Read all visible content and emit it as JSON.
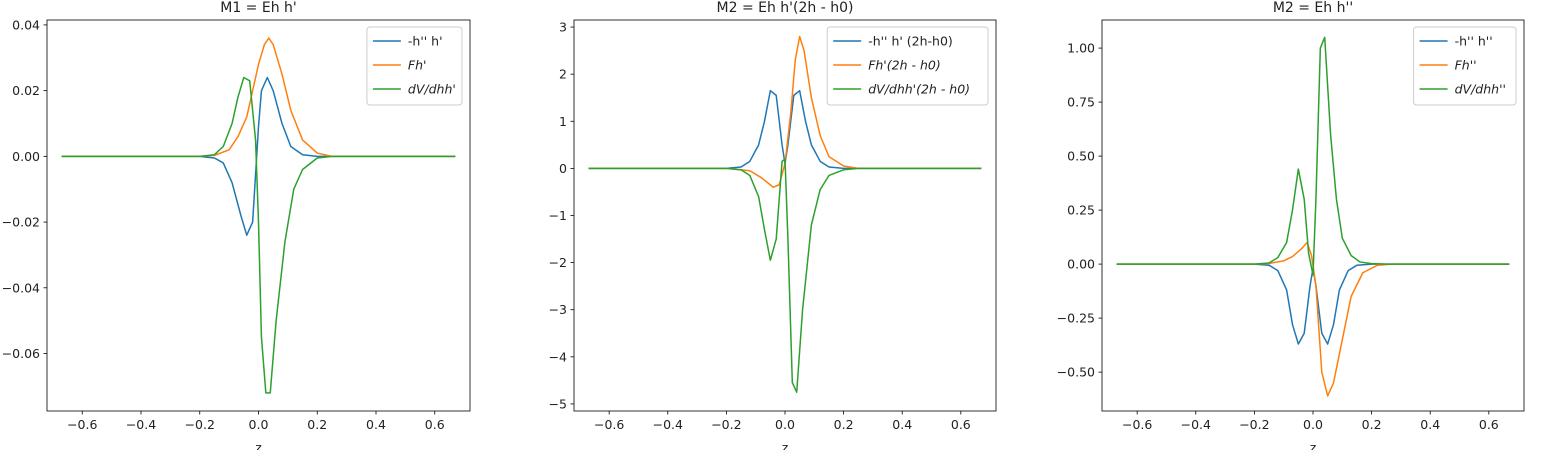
{
  "chart_data": [
    {
      "type": "line",
      "title": "M1 = Eh h'",
      "xlabel": "z",
      "ylabel": "",
      "xlim": [
        -0.72,
        0.72
      ],
      "ylim": [
        -0.0775,
        0.0415
      ],
      "xticks": [
        -0.6,
        -0.4,
        -0.2,
        0.0,
        0.2,
        0.4,
        0.6
      ],
      "xtick_labels": [
        "−0.6",
        "−0.4",
        "−0.2",
        "0.0",
        "0.2",
        "0.4",
        "0.6"
      ],
      "yticks": [
        0.04,
        0.02,
        0.0,
        -0.02,
        -0.04,
        -0.06
      ],
      "ytick_labels": [
        "0.04",
        "0.02",
        "0.00",
        "−0.02",
        "−0.04",
        "−0.06"
      ],
      "legend_position": "top-right",
      "series": [
        {
          "name": "-h'' h'",
          "color": "#1f77b4",
          "x": [
            -0.67,
            -0.2,
            -0.15,
            -0.12,
            -0.09,
            -0.06,
            -0.04,
            -0.02,
            0.0,
            0.01,
            0.03,
            0.05,
            0.08,
            0.11,
            0.15,
            0.2,
            0.67
          ],
          "y": [
            0,
            0,
            -0.0005,
            -0.002,
            -0.008,
            -0.018,
            -0.024,
            -0.02,
            0.009,
            0.02,
            0.024,
            0.02,
            0.01,
            0.003,
            0.0005,
            0,
            0
          ]
        },
        {
          "name": "Fh'",
          "color": "#ff7f0e",
          "x": [
            -0.67,
            -0.2,
            -0.15,
            -0.1,
            -0.07,
            -0.04,
            -0.02,
            0.0,
            0.02,
            0.035,
            0.05,
            0.08,
            0.11,
            0.15,
            0.2,
            0.25,
            0.67
          ],
          "y": [
            0,
            0,
            0.0003,
            0.002,
            0.006,
            0.012,
            0.02,
            0.028,
            0.034,
            0.036,
            0.034,
            0.025,
            0.014,
            0.005,
            0.001,
            0,
            0
          ]
        },
        {
          "name": "dV/dhh'",
          "color": "#2ca02c",
          "x": [
            -0.67,
            -0.2,
            -0.15,
            -0.12,
            -0.09,
            -0.07,
            -0.05,
            -0.03,
            -0.01,
            0.0,
            0.01,
            0.025,
            0.04,
            0.06,
            0.09,
            0.12,
            0.15,
            0.2,
            0.25,
            0.67
          ],
          "y": [
            0,
            0,
            0.0005,
            0.003,
            0.01,
            0.018,
            0.024,
            0.023,
            0.005,
            -0.02,
            -0.055,
            -0.072,
            -0.072,
            -0.05,
            -0.026,
            -0.01,
            -0.004,
            -0.0005,
            0,
            0
          ]
        }
      ]
    },
    {
      "type": "line",
      "title": "M2 = Eh h'(2h - h0)",
      "xlabel": "z",
      "ylabel": "",
      "xlim": [
        -0.72,
        0.72
      ],
      "ylim": [
        -5.15,
        3.15
      ],
      "xticks": [
        -0.6,
        -0.4,
        -0.2,
        0.0,
        0.2,
        0.4,
        0.6
      ],
      "xtick_labels": [
        "−0.6",
        "−0.4",
        "−0.2",
        "0.0",
        "0.2",
        "0.4",
        "0.6"
      ],
      "yticks": [
        3,
        2,
        1,
        0,
        -1,
        -2,
        -3,
        -4,
        -5
      ],
      "ytick_labels": [
        "3",
        "2",
        "1",
        "0",
        "−1",
        "−2",
        "−3",
        "−4",
        "−5"
      ],
      "legend_position": "top-right",
      "series": [
        {
          "name": "-h'' h' (2h-h0)",
          "color": "#1f77b4",
          "x": [
            -0.67,
            -0.2,
            -0.15,
            -0.12,
            -0.09,
            -0.07,
            -0.05,
            -0.03,
            -0.01,
            0.0,
            0.01,
            0.03,
            0.05,
            0.07,
            0.09,
            0.12,
            0.15,
            0.2,
            0.67
          ],
          "y": [
            0,
            0,
            0.03,
            0.15,
            0.5,
            1.0,
            1.65,
            1.55,
            0.5,
            0.1,
            0.5,
            1.55,
            1.65,
            1.0,
            0.5,
            0.15,
            0.03,
            0,
            0
          ]
        },
        {
          "name": "Fh'(2h - h0)",
          "color": "#ff7f0e",
          "x": [
            -0.67,
            -0.2,
            -0.12,
            -0.08,
            -0.04,
            -0.02,
            0.0,
            0.02,
            0.035,
            0.05,
            0.065,
            0.09,
            0.12,
            0.15,
            0.2,
            0.25,
            0.67
          ],
          "y": [
            0,
            0,
            -0.05,
            -0.2,
            -0.4,
            -0.35,
            0.1,
            1.2,
            2.3,
            2.8,
            2.5,
            1.5,
            0.7,
            0.25,
            0.05,
            0,
            0
          ]
        },
        {
          "name": "dV/dhh'(2h - h0)",
          "color": "#2ca02c",
          "x": [
            -0.67,
            -0.2,
            -0.15,
            -0.12,
            -0.09,
            -0.07,
            -0.05,
            -0.03,
            -0.01,
            0.0,
            0.01,
            0.025,
            0.04,
            0.06,
            0.09,
            0.12,
            0.15,
            0.2,
            0.25,
            0.67
          ],
          "y": [
            0,
            0,
            -0.03,
            -0.15,
            -0.6,
            -1.3,
            -1.95,
            -1.5,
            0.15,
            0.2,
            -1.5,
            -4.55,
            -4.75,
            -3.0,
            -1.2,
            -0.45,
            -0.15,
            -0.03,
            0,
            0
          ]
        }
      ]
    },
    {
      "type": "line",
      "title": "M2 = Eh h''",
      "xlabel": "z",
      "ylabel": "",
      "xlim": [
        -0.72,
        0.72
      ],
      "ylim": [
        -0.68,
        1.13
      ],
      "xticks": [
        -0.6,
        -0.4,
        -0.2,
        0.0,
        0.2,
        0.4,
        0.6
      ],
      "xtick_labels": [
        "−0.6",
        "−0.4",
        "−0.2",
        "0.0",
        "0.2",
        "0.4",
        "0.6"
      ],
      "yticks": [
        1.0,
        0.75,
        0.5,
        0.25,
        0.0,
        -0.25,
        -0.5
      ],
      "ytick_labels": [
        "1.00",
        "0.75",
        "0.50",
        "0.25",
        "0.00",
        "−0.25",
        "−0.50"
      ],
      "legend_position": "top-right",
      "series": [
        {
          "name": "-h'' h''",
          "color": "#1f77b4",
          "x": [
            -0.67,
            -0.2,
            -0.15,
            -0.12,
            -0.09,
            -0.07,
            -0.05,
            -0.03,
            -0.01,
            0.0,
            0.01,
            0.03,
            0.05,
            0.07,
            0.09,
            0.12,
            0.15,
            0.2,
            0.67
          ],
          "y": [
            0,
            0,
            -0.005,
            -0.03,
            -0.12,
            -0.28,
            -0.37,
            -0.32,
            -0.1,
            -0.02,
            -0.1,
            -0.32,
            -0.37,
            -0.28,
            -0.12,
            -0.03,
            -0.005,
            0,
            0
          ]
        },
        {
          "name": "Fh''",
          "color": "#ff7f0e",
          "x": [
            -0.67,
            -0.2,
            -0.15,
            -0.1,
            -0.07,
            -0.04,
            -0.02,
            -0.005,
            0.01,
            0.03,
            0.05,
            0.07,
            0.1,
            0.13,
            0.17,
            0.22,
            0.27,
            0.67
          ],
          "y": [
            0,
            0,
            0.003,
            0.015,
            0.035,
            0.07,
            0.1,
            0.04,
            -0.1,
            -0.5,
            -0.61,
            -0.55,
            -0.35,
            -0.15,
            -0.04,
            -0.005,
            0,
            0
          ]
        },
        {
          "name": "dV/dhh''",
          "color": "#2ca02c",
          "x": [
            -0.67,
            -0.2,
            -0.15,
            -0.12,
            -0.09,
            -0.07,
            -0.05,
            -0.03,
            -0.015,
            0.0,
            0.01,
            0.025,
            0.04,
            0.06,
            0.08,
            0.1,
            0.13,
            0.16,
            0.2,
            0.25,
            0.67
          ],
          "y": [
            0,
            0,
            0.005,
            0.03,
            0.1,
            0.25,
            0.44,
            0.3,
            0.05,
            -0.05,
            0.3,
            1.0,
            1.05,
            0.6,
            0.3,
            0.12,
            0.04,
            0.01,
            0.002,
            0,
            0
          ]
        }
      ]
    }
  ]
}
